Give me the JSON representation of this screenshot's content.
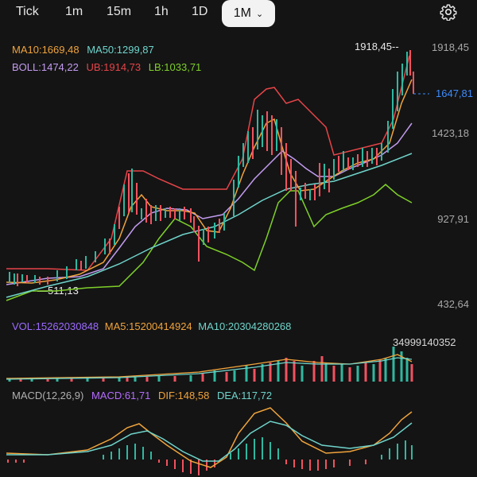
{
  "timeframes": {
    "tick": "Tick",
    "m1": "1m",
    "m15": "15m",
    "h1": "1h",
    "d1": "1D",
    "mo1": "1M",
    "active_chevron": "⌄"
  },
  "settings_icon": "gear-icon",
  "ma_legend": {
    "ma10": "MA10:1669,48",
    "ma50": "MA50:1299,87"
  },
  "boll_legend": {
    "boll": "BOLL:1474,22",
    "ub": "UB:1914,73",
    "lb": "LB:1033,71"
  },
  "price_axis": {
    "p1": "1918,45",
    "p2": "1423,18",
    "p3": "927,91",
    "p4": "432,64"
  },
  "current_price": "1647,81",
  "high_label": "1918,45--",
  "low_label": "—511,13",
  "volume_legend": {
    "vol": "VOL:15262030848",
    "ma5": "MA5:15200414924",
    "ma10": "MA10:20304280268"
  },
  "volume_max": "34999140352",
  "macd_legend": {
    "params": "MACD(12,26,9)",
    "macd": "MACD:61,71",
    "dif": "DIF:148,58",
    "dea": "DEA:117,72"
  },
  "colors": {
    "up": "#2fb8a0",
    "down": "#f2525f",
    "ma10": "#f0a33c",
    "ma50": "#6fd4cb",
    "boll": "#c39bf0",
    "ub": "#e64448",
    "lb": "#7ed02a",
    "vol_label": "#9b6bff",
    "macd_label": "#b56cff",
    "price_current": "#3d8cff"
  }
}
